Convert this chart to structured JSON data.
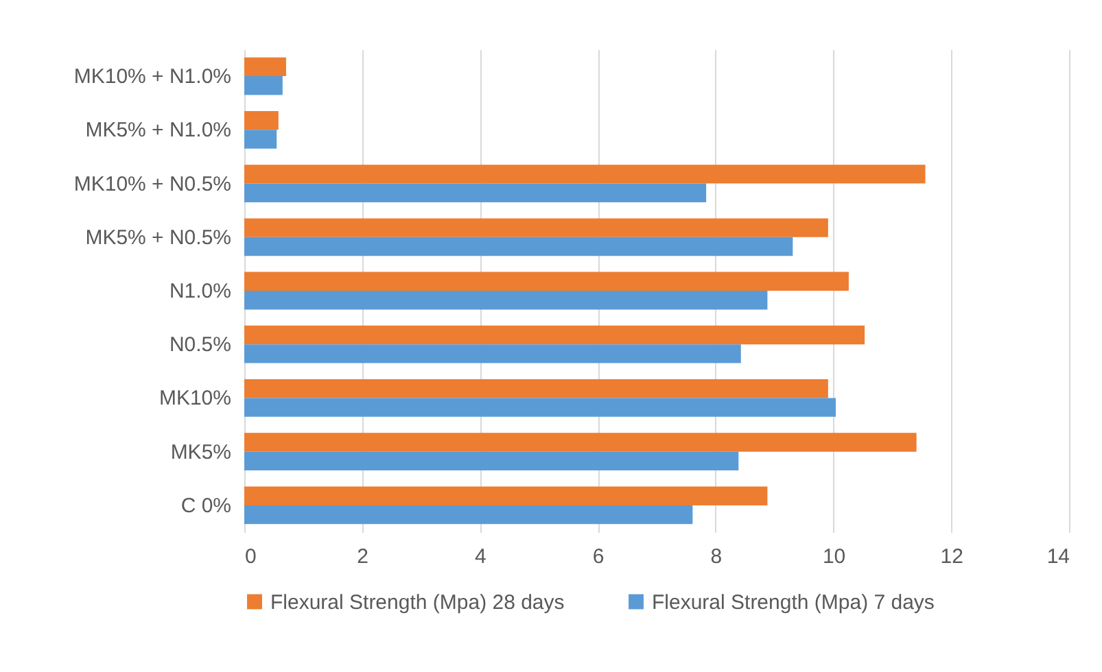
{
  "chart_data": {
    "type": "bar",
    "orientation": "horizontal",
    "categories": [
      "MK10% + N1.0%",
      "MK5% + N1.0%",
      "MK10% + N0.5%",
      "MK5% + N0.5%",
      "N1.0%",
      "N0.5%",
      "MK10%",
      "MK5%",
      "C 0%"
    ],
    "series": [
      {
        "name": "Flexural Strength (Mpa) 28  days",
        "color": "#ed7d31",
        "values": [
          0.71,
          0.58,
          11.56,
          9.91,
          10.26,
          10.53,
          9.91,
          11.41,
          8.88
        ]
      },
      {
        "name": "Flexural Strength (Mpa) 7 days",
        "color": "#5b9bd5",
        "values": [
          0.65,
          0.55,
          7.84,
          9.31,
          8.88,
          8.43,
          10.04,
          8.39,
          7.61
        ]
      }
    ],
    "xlim": [
      0,
      14
    ],
    "xticks": [
      0,
      2,
      4,
      6,
      8,
      10,
      12,
      14
    ],
    "grid": "x",
    "legend": "bottom"
  }
}
